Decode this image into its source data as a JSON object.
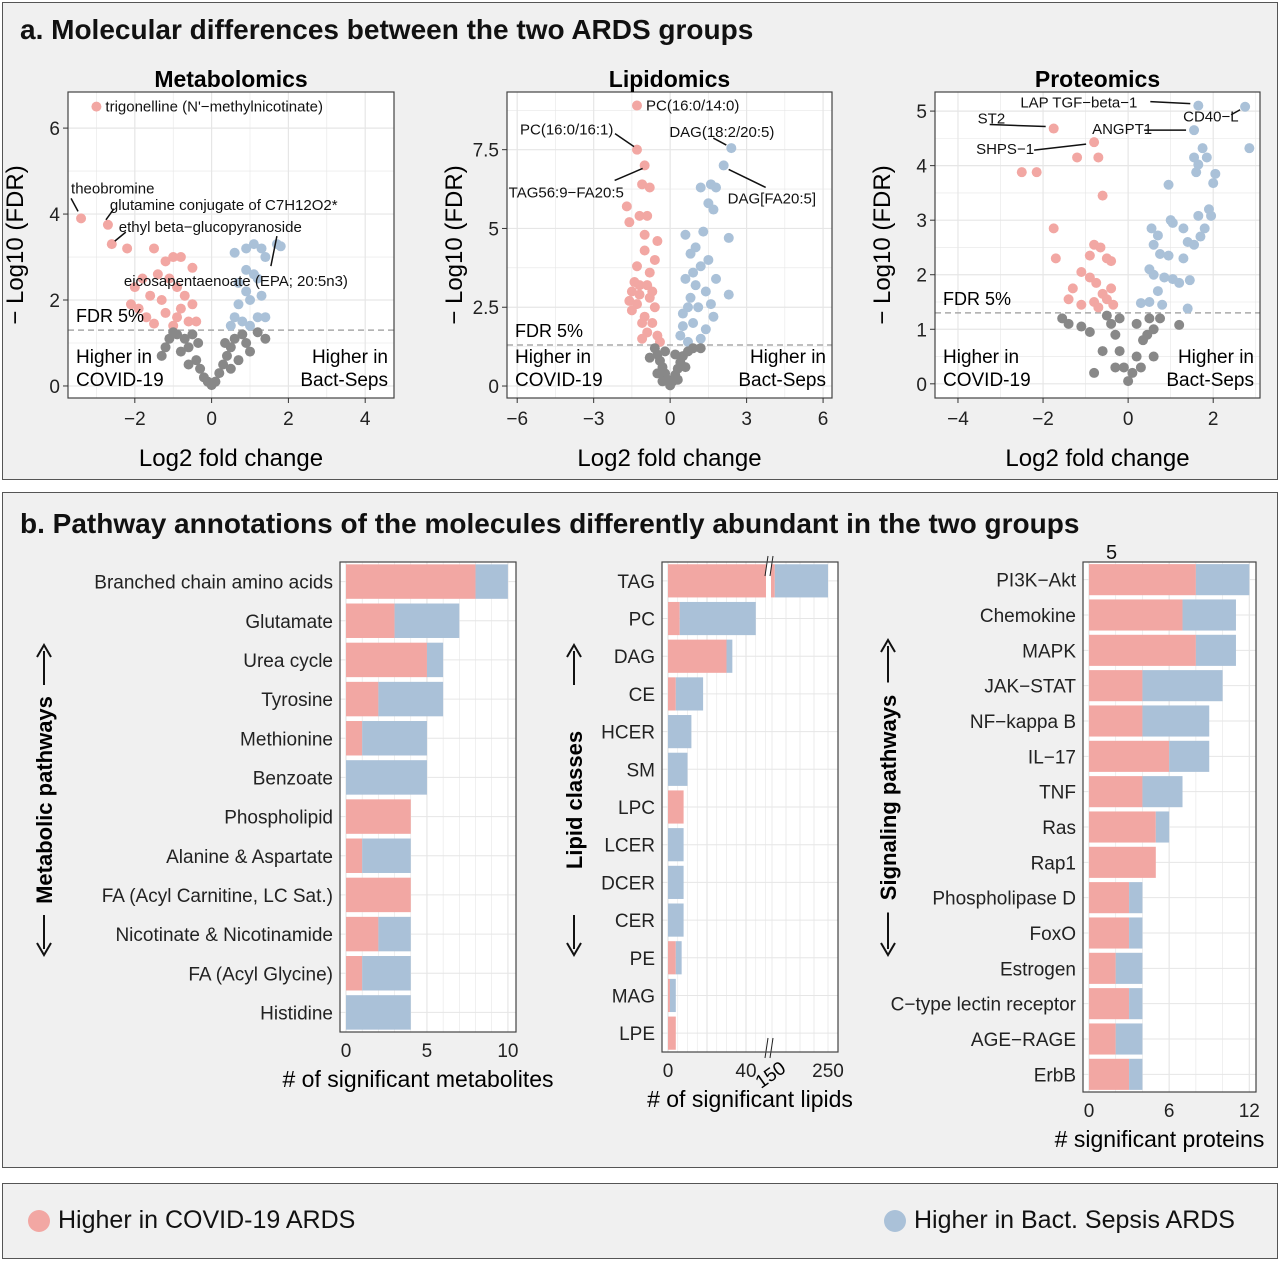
{
  "colors": {
    "covid": "#f2a7a3",
    "sepsis": "#aac1d8",
    "ns": "#888888",
    "grid": "#e6e6e6"
  },
  "panel_a": {
    "title": "a. Molecular differences between the two ARDS groups"
  },
  "panel_b": {
    "title": "b. Pathway annotations of the molecules differently abundant in the two groups",
    "overlay_text": "5"
  },
  "legend": {
    "covid_label": "Higher in COVID-19 ARDS",
    "sepsis_label": "Higher in Bact. Sepsis ARDS"
  },
  "chart_data": [
    {
      "type": "scatter",
      "title": "Metabolomics",
      "xlabel": "Log2 fold change",
      "ylabel": "− Log10 (FDR)",
      "xlim": [
        -3.74,
        4.75
      ],
      "ylim": [
        -0.28,
        6.84
      ],
      "xticks": [
        -2,
        0,
        2,
        4
      ],
      "yticks": [
        0,
        2,
        4,
        6
      ],
      "threshold": 1.3,
      "threshold_label": "FDR 5%",
      "left_note": [
        "Higher in",
        "COVID-19"
      ],
      "right_note": [
        "Higher in",
        "Bact-Seps"
      ],
      "grid": true,
      "labeled_points": [
        {
          "label": "trigonelline (N'−methylnicotinate)",
          "x": -3.0,
          "y": 6.5
        },
        {
          "label": "theobromine",
          "x": -3.4,
          "y": 3.9
        },
        {
          "label": "glutamine conjugate of C7H12O2*",
          "x": -2.7,
          "y": 3.75
        },
        {
          "label": "ethyl beta−glucopyranoside",
          "x": -2.6,
          "y": 3.3
        },
        {
          "label": "eicosapentaenoate (EPA; 20:5n3)",
          "x": 1.7,
          "y": 3.3
        }
      ],
      "points": [
        [
          -2.2,
          3.2
        ],
        [
          -1.5,
          3.2
        ],
        [
          -1.2,
          2.9
        ],
        [
          -1.0,
          3.0
        ],
        [
          -0.8,
          3.0
        ],
        [
          -0.5,
          2.75
        ],
        [
          -1.8,
          2.5
        ],
        [
          -1.4,
          2.6
        ],
        [
          -1.1,
          2.5
        ],
        [
          -0.9,
          2.3
        ],
        [
          -2.0,
          2.3
        ],
        [
          -1.6,
          2.1
        ],
        [
          -1.3,
          2.0
        ],
        [
          -0.7,
          2.1
        ],
        [
          -1.9,
          1.8
        ],
        [
          -1.2,
          1.7
        ],
        [
          -0.9,
          1.6
        ],
        [
          -0.6,
          1.5
        ],
        [
          -1.5,
          1.45
        ],
        [
          -0.4,
          1.5
        ],
        [
          -1.0,
          1.4
        ],
        [
          -2.1,
          1.9
        ],
        [
          -0.8,
          1.8
        ],
        [
          -0.5,
          1.9
        ],
        [
          -1.7,
          1.6
        ],
        [
          0.6,
          3.1
        ],
        [
          0.9,
          3.2
        ],
        [
          1.1,
          3.3
        ],
        [
          1.3,
          3.2
        ],
        [
          1.4,
          3.0
        ],
        [
          1.8,
          3.25
        ],
        [
          0.9,
          2.7
        ],
        [
          1.1,
          2.6
        ],
        [
          0.7,
          2.4
        ],
        [
          1.2,
          2.5
        ],
        [
          0.9,
          2.2
        ],
        [
          1.0,
          2.0
        ],
        [
          0.7,
          1.9
        ],
        [
          1.3,
          2.1
        ],
        [
          0.6,
          1.6
        ],
        [
          1.2,
          1.6
        ],
        [
          0.8,
          1.5
        ],
        [
          1.0,
          1.4
        ],
        [
          1.4,
          1.6
        ],
        [
          0.5,
          1.4
        ],
        [
          -1.3,
          0.7
        ],
        [
          -1.2,
          0.9
        ],
        [
          -0.9,
          1.2
        ],
        [
          -0.7,
          1.1
        ],
        [
          -0.6,
          0.9
        ],
        [
          -0.4,
          0.6
        ],
        [
          -0.3,
          0.4
        ],
        [
          -0.2,
          0.2
        ],
        [
          -0.1,
          0.1
        ],
        [
          0,
          0.02
        ],
        [
          0.1,
          0.1
        ],
        [
          0.2,
          0.3
        ],
        [
          0.3,
          0.5
        ],
        [
          0.4,
          0.7
        ],
        [
          0.5,
          0.9
        ],
        [
          0.6,
          1.1
        ],
        [
          0.8,
          1.2
        ],
        [
          0.9,
          1.0
        ],
        [
          1.0,
          0.8
        ],
        [
          1.2,
          1.25
        ],
        [
          -1.0,
          1.25
        ],
        [
          -0.5,
          1.2
        ],
        [
          0.7,
          0.6
        ],
        [
          -0.8,
          0.8
        ],
        [
          -1.1,
          1.1
        ],
        [
          -0.35,
          1.0
        ],
        [
          0.35,
          1.0
        ],
        [
          1.4,
          1.1
        ],
        [
          -0.6,
          0.5
        ],
        [
          0.5,
          0.4
        ]
      ]
    },
    {
      "type": "scatter",
      "title": "Lipidomics",
      "xlabel": "Log2 fold change",
      "ylabel": "− Log10 (FDR)",
      "xlim": [
        -6.4,
        6.35
      ],
      "ylim": [
        -0.38,
        9.33
      ],
      "xticks": [
        -6,
        -3,
        0,
        3,
        6
      ],
      "yticks": [
        0,
        2.5,
        5,
        7.5
      ],
      "threshold": 1.3,
      "threshold_label": "FDR 5%",
      "left_note": [
        "Higher in",
        "COVID-19"
      ],
      "right_note": [
        "Higher in",
        "Bact-Seps"
      ],
      "grid": true,
      "labeled_points": [
        {
          "label": "PC(16:0/14:0)",
          "x": -1.3,
          "y": 8.9
        },
        {
          "label": "PC(16:0/16:1)",
          "x": -1.3,
          "y": 7.5
        },
        {
          "label": "TAG56:9−FA20:5",
          "x": -1.0,
          "y": 7.0
        },
        {
          "label": "DAG(18:2/20:5)",
          "x": 2.4,
          "y": 7.55
        },
        {
          "label": "DAG[FA20:5]",
          "x": 2.1,
          "y": 7.0
        }
      ],
      "points": [
        [
          -0.8,
          6.3
        ],
        [
          -1.1,
          6.4
        ],
        [
          -1.7,
          5.7
        ],
        [
          -1.6,
          5.2
        ],
        [
          -1.2,
          5.4
        ],
        [
          -0.9,
          5.4
        ],
        [
          -1.0,
          4.8
        ],
        [
          -0.5,
          4.6
        ],
        [
          -1.0,
          4.3
        ],
        [
          -0.6,
          4.0
        ],
        [
          -1.3,
          3.8
        ],
        [
          -0.8,
          3.6
        ],
        [
          -1.5,
          3.0
        ],
        [
          -1.2,
          3.2
        ],
        [
          -0.9,
          3.2
        ],
        [
          -1.6,
          2.7
        ],
        [
          -1.3,
          2.6
        ],
        [
          -0.8,
          2.8
        ],
        [
          -0.6,
          2.5
        ],
        [
          -1.0,
          2.2
        ],
        [
          -1.5,
          2.4
        ],
        [
          -0.7,
          2.0
        ],
        [
          -0.9,
          1.7
        ],
        [
          -0.5,
          1.6
        ],
        [
          -1.1,
          1.5
        ],
        [
          -0.4,
          1.4
        ],
        [
          -1.2,
          2.9
        ],
        [
          -1.4,
          3.3
        ],
        [
          -0.7,
          3.0
        ],
        [
          -1.1,
          2.0
        ],
        [
          1.2,
          6.3
        ],
        [
          1.6,
          6.4
        ],
        [
          1.8,
          6.3
        ],
        [
          1.5,
          5.8
        ],
        [
          1.7,
          5.6
        ],
        [
          2.3,
          4.7
        ],
        [
          0.6,
          4.8
        ],
        [
          1.3,
          4.9
        ],
        [
          1.0,
          4.4
        ],
        [
          0.8,
          4.2
        ],
        [
          1.5,
          4.0
        ],
        [
          1.2,
          3.8
        ],
        [
          0.9,
          3.6
        ],
        [
          1.8,
          3.4
        ],
        [
          0.6,
          3.4
        ],
        [
          2.3,
          2.9
        ],
        [
          1.4,
          3.0
        ],
        [
          0.8,
          2.8
        ],
        [
          1.1,
          2.5
        ],
        [
          0.5,
          2.3
        ],
        [
          1.7,
          2.2
        ],
        [
          0.9,
          2.0
        ],
        [
          1.4,
          1.8
        ],
        [
          0.4,
          1.6
        ],
        [
          1.2,
          1.5
        ],
        [
          0.7,
          1.4
        ],
        [
          1.0,
          3.2
        ],
        [
          0.7,
          2.5
        ],
        [
          1.6,
          2.6
        ],
        [
          0.5,
          1.9
        ],
        [
          -0.6,
          1.2
        ],
        [
          -0.5,
          1.0
        ],
        [
          -0.4,
          0.8
        ],
        [
          -0.3,
          0.6
        ],
        [
          -0.2,
          0.4
        ],
        [
          -0.1,
          0.2
        ],
        [
          0,
          0.02
        ],
        [
          0.1,
          0.15
        ],
        [
          0.2,
          0.35
        ],
        [
          0.3,
          0.55
        ],
        [
          0.4,
          0.75
        ],
        [
          0.5,
          0.95
        ],
        [
          0.7,
          1.1
        ],
        [
          0.9,
          1.2
        ],
        [
          1.2,
          1.2
        ],
        [
          -0.8,
          0.9
        ],
        [
          -0.2,
          1.1
        ],
        [
          0.2,
          1.0
        ],
        [
          0.6,
          0.6
        ],
        [
          -0.5,
          0.4
        ],
        [
          0.3,
          0.2
        ],
        [
          -0.3,
          0.15
        ]
      ]
    },
    {
      "type": "scatter",
      "title": "Proteomics",
      "xlabel": "Log2 fold change",
      "ylabel": "− Log10 (FDR)",
      "xlim": [
        -4.54,
        3.1
      ],
      "ylim": [
        -0.26,
        5.35
      ],
      "xticks": [
        -4,
        -2,
        0,
        2
      ],
      "yticks": [
        0,
        1,
        2,
        3,
        4,
        5
      ],
      "threshold": 1.3,
      "threshold_label": "FDR 5%",
      "left_note": [
        "Higher in",
        "COVID-19"
      ],
      "right_note": [
        "Higher in",
        "Bact-Seps"
      ],
      "grid": true,
      "labeled_points": [
        {
          "label": "LAP TGF−beta−1",
          "x": 1.65,
          "y": 5.1
        },
        {
          "label": "CD40−L",
          "x": 2.75,
          "y": 5.08
        },
        {
          "label": "ST2",
          "x": -1.75,
          "y": 4.68
        },
        {
          "label": "ANGPT1",
          "x": 1.55,
          "y": 4.65
        },
        {
          "label": "SHPS−1",
          "x": -0.8,
          "y": 4.43
        }
      ],
      "points": [
        [
          -2.5,
          3.88
        ],
        [
          -2.15,
          3.88
        ],
        [
          -1.2,
          4.15
        ],
        [
          -0.7,
          4.15
        ],
        [
          -0.6,
          3.45
        ],
        [
          -1.75,
          2.85
        ],
        [
          -1.7,
          2.3
        ],
        [
          -0.8,
          2.55
        ],
        [
          -0.65,
          2.5
        ],
        [
          -0.9,
          2.35
        ],
        [
          -0.5,
          2.3
        ],
        [
          -0.4,
          2.25
        ],
        [
          -1.1,
          2.05
        ],
        [
          -0.9,
          1.95
        ],
        [
          -0.75,
          1.85
        ],
        [
          -1.3,
          1.75
        ],
        [
          -0.6,
          1.65
        ],
        [
          -1.4,
          1.55
        ],
        [
          -0.8,
          1.5
        ],
        [
          -0.5,
          1.55
        ],
        [
          -1.1,
          1.45
        ],
        [
          -0.35,
          1.45
        ],
        [
          -0.7,
          1.4
        ],
        [
          -0.4,
          1.75
        ],
        [
          2.85,
          4.32
        ],
        [
          1.75,
          4.32
        ],
        [
          1.55,
          4.15
        ],
        [
          1.85,
          4.15
        ],
        [
          1.65,
          4.02
        ],
        [
          1.6,
          3.88
        ],
        [
          2.05,
          3.85
        ],
        [
          2.0,
          3.68
        ],
        [
          0.95,
          3.65
        ],
        [
          1.0,
          3.0
        ],
        [
          1.05,
          2.95
        ],
        [
          1.9,
          3.2
        ],
        [
          1.95,
          3.08
        ],
        [
          1.65,
          3.08
        ],
        [
          0.55,
          2.85
        ],
        [
          1.3,
          2.85
        ],
        [
          1.8,
          2.85
        ],
        [
          1.7,
          2.7
        ],
        [
          0.7,
          2.72
        ],
        [
          1.4,
          2.6
        ],
        [
          1.55,
          2.55
        ],
        [
          0.6,
          2.55
        ],
        [
          0.75,
          2.38
        ],
        [
          0.95,
          2.35
        ],
        [
          1.3,
          2.3
        ],
        [
          0.5,
          2.1
        ],
        [
          0.6,
          2.0
        ],
        [
          0.85,
          1.95
        ],
        [
          1.05,
          1.92
        ],
        [
          1.2,
          1.85
        ],
        [
          1.45,
          1.9
        ],
        [
          0.7,
          1.7
        ],
        [
          0.5,
          1.5
        ],
        [
          0.3,
          1.48
        ],
        [
          0.8,
          1.45
        ],
        [
          1.4,
          1.38
        ],
        [
          -1.55,
          1.2
        ],
        [
          -1.4,
          1.1
        ],
        [
          -1.1,
          1.05
        ],
        [
          -0.9,
          0.95
        ],
        [
          -0.5,
          1.25
        ],
        [
          -0.4,
          1.1
        ],
        [
          -0.3,
          0.9
        ],
        [
          -0.2,
          0.6
        ],
        [
          -0.1,
          0.3
        ],
        [
          0,
          0.05
        ],
        [
          0.1,
          0.2
        ],
        [
          0.2,
          0.5
        ],
        [
          0.35,
          0.8
        ],
        [
          0.5,
          1.2
        ],
        [
          0.6,
          1.0
        ],
        [
          0.75,
          1.2
        ],
        [
          1.2,
          1.08
        ],
        [
          -0.6,
          0.6
        ],
        [
          0.6,
          0.5
        ],
        [
          -0.3,
          0.3
        ],
        [
          0.3,
          0.3
        ],
        [
          -0.8,
          0.2
        ],
        [
          0.45,
          0.9
        ],
        [
          -0.2,
          1.2
        ],
        [
          0.2,
          1.1
        ]
      ]
    },
    {
      "type": "bar",
      "orientation": "horizontal",
      "stacked": true,
      "side_label": "Metabolic pathways",
      "xlabel": "# of significant metabolites",
      "xlim": [
        0,
        10.5
      ],
      "xticks": [
        0,
        5,
        10
      ],
      "categories": [
        "Branched chain amino acids",
        "Glutamate",
        "Urea cycle",
        "Tyrosine",
        "Methionine",
        "Benzoate",
        "Phospholipid",
        "Alanine & Aspartate",
        "FA (Acyl Carnitine, LC Sat.)",
        "Nicotinate & Nicotinamide",
        "FA (Acyl Glycine)",
        "Histidine"
      ],
      "series": [
        {
          "name": "Higher in COVID-19 ARDS",
          "values": [
            8,
            3,
            5,
            2,
            1,
            0,
            4,
            1,
            4,
            2,
            1,
            0
          ]
        },
        {
          "name": "Higher in Bact. Sepsis ARDS",
          "values": [
            2,
            4,
            1,
            4,
            4,
            5,
            0,
            3,
            0,
            2,
            3,
            4
          ]
        }
      ]
    },
    {
      "type": "bar",
      "orientation": "horizontal",
      "stacked": true,
      "axis_break": [
        52,
        150
      ],
      "side_label": "Lipid classes",
      "xlabel": "# of significant lipids",
      "xticks": [
        0,
        40,
        150,
        250
      ],
      "categories": [
        "TAG",
        "PC",
        "DAG",
        "CE",
        "HCER",
        "SM",
        "LPC",
        "LCER",
        "DCER",
        "CER",
        "PE",
        "MAG",
        "LPE"
      ],
      "series": [
        {
          "name": "Higher in COVID-19 ARDS",
          "values": [
            155,
            6,
            30,
            4,
            0,
            0,
            8,
            0,
            0,
            0,
            4,
            1,
            4
          ]
        },
        {
          "name": "Higher in Bact. Sepsis ARDS",
          "values": [
            95,
            39,
            3,
            14,
            12,
            10,
            0,
            8,
            8,
            8,
            3,
            3,
            0
          ]
        }
      ]
    },
    {
      "type": "bar",
      "orientation": "horizontal",
      "stacked": true,
      "side_label": "Signaling pathways",
      "xlabel": "# significant proteins",
      "xlim": [
        0,
        12.5
      ],
      "xticks": [
        0,
        6,
        12
      ],
      "categories": [
        "PI3K−Akt",
        "Chemokine",
        "MAPK",
        "JAK−STAT",
        "NF−kappa B",
        "IL−17",
        "TNF",
        "Ras",
        "Rap1",
        "Phospholipase D",
        "FoxO",
        "Estrogen",
        "C−type lectin receptor",
        "AGE−RAGE",
        "ErbB"
      ],
      "series": [
        {
          "name": "Higher in COVID-19 ARDS",
          "values": [
            8,
            7,
            8,
            4,
            4,
            6,
            4,
            5,
            5,
            3,
            3,
            2,
            3,
            2,
            3
          ]
        },
        {
          "name": "Higher in Bact. Sepsis ARDS",
          "values": [
            4,
            4,
            3,
            6,
            5,
            3,
            3,
            1,
            0,
            1,
            1,
            2,
            1,
            2,
            1
          ]
        }
      ]
    }
  ]
}
